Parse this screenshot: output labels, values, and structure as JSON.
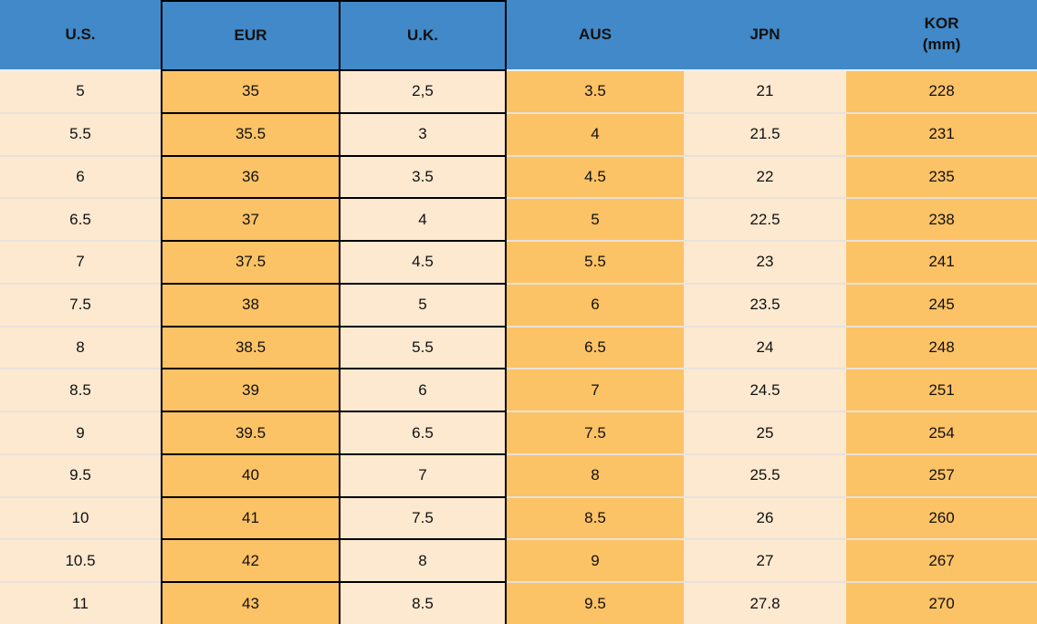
{
  "colors": {
    "header_bg": "#4189c8",
    "cream_column": "#fde9d0",
    "orange_column": "#fcc266",
    "block_border": "#000000",
    "row_separator": "#e8e2da",
    "header_separator": "#edefee",
    "text": "#111111"
  },
  "header": {
    "cells": [
      {
        "label": "U.S.",
        "sub": ""
      },
      {
        "label": "EUR",
        "sub": ""
      },
      {
        "label": "U.K.",
        "sub": ""
      },
      {
        "label": "AUS",
        "sub": ""
      },
      {
        "label": "JPN",
        "sub": ""
      },
      {
        "label": "KOR",
        "sub": "(mm)"
      }
    ]
  },
  "chart_data": {
    "type": "table",
    "columns": [
      "U.S.",
      "EUR",
      "U.K.",
      "AUS",
      "JPN",
      "KOR (mm)"
    ],
    "rows": [
      [
        "5",
        "35",
        "2,5",
        "3.5",
        "21",
        "228"
      ],
      [
        "5.5",
        "35.5",
        "3",
        "4",
        "21.5",
        "231"
      ],
      [
        "6",
        "36",
        "3.5",
        "4.5",
        "22",
        "235"
      ],
      [
        "6.5",
        "37",
        "4",
        "5",
        "22.5",
        "238"
      ],
      [
        "7",
        "37.5",
        "4.5",
        "5.5",
        "23",
        "241"
      ],
      [
        "7.5",
        "38",
        "5",
        "6",
        "23.5",
        "245"
      ],
      [
        "8",
        "38.5",
        "5.5",
        "6.5",
        "24",
        "248"
      ],
      [
        "8.5",
        "39",
        "6",
        "7",
        "24.5",
        "251"
      ],
      [
        "9",
        "39.5",
        "6.5",
        "7.5",
        "25",
        "254"
      ],
      [
        "9.5",
        "40",
        "7",
        "8",
        "25.5",
        "257"
      ],
      [
        "10",
        "41",
        "7.5",
        "8.5",
        "26",
        "260"
      ],
      [
        "10.5",
        "42",
        "8",
        "9",
        "27",
        "267"
      ],
      [
        "11",
        "43",
        "8.5",
        "9.5",
        "27.8",
        "270"
      ]
    ]
  }
}
